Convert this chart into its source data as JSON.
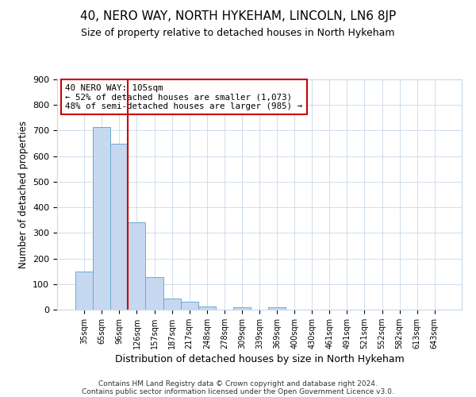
{
  "title": "40, NERO WAY, NORTH HYKEHAM, LINCOLN, LN6 8JP",
  "subtitle": "Size of property relative to detached houses in North Hykeham",
  "xlabel": "Distribution of detached houses by size in North Hykeham",
  "ylabel": "Number of detached properties",
  "bar_labels": [
    "35sqm",
    "65sqm",
    "96sqm",
    "126sqm",
    "157sqm",
    "187sqm",
    "217sqm",
    "248sqm",
    "278sqm",
    "309sqm",
    "339sqm",
    "369sqm",
    "400sqm",
    "430sqm",
    "461sqm",
    "491sqm",
    "521sqm",
    "552sqm",
    "582sqm",
    "613sqm",
    "643sqm"
  ],
  "bar_values": [
    150,
    715,
    650,
    340,
    128,
    42,
    30,
    12,
    0,
    8,
    0,
    8,
    0,
    0,
    0,
    0,
    0,
    0,
    0,
    0,
    0
  ],
  "bar_color": "#c5d8f0",
  "bar_edgecolor": "#6aaad4",
  "vline_x": 2.5,
  "vline_color": "#cc0000",
  "ylim": [
    0,
    900
  ],
  "yticks": [
    0,
    100,
    200,
    300,
    400,
    500,
    600,
    700,
    800,
    900
  ],
  "annotation_text": "40 NERO WAY: 105sqm\n← 52% of detached houses are smaller (1,073)\n48% of semi-detached houses are larger (985) →",
  "annotation_box_color": "#ffffff",
  "annotation_box_edgecolor": "#cc0000",
  "footer_line1": "Contains HM Land Registry data © Crown copyright and database right 2024.",
  "footer_line2": "Contains public sector information licensed under the Open Government Licence v3.0.",
  "bg_color": "#ffffff",
  "plot_bg_color": "#ffffff",
  "grid_color": "#c8d8e8"
}
